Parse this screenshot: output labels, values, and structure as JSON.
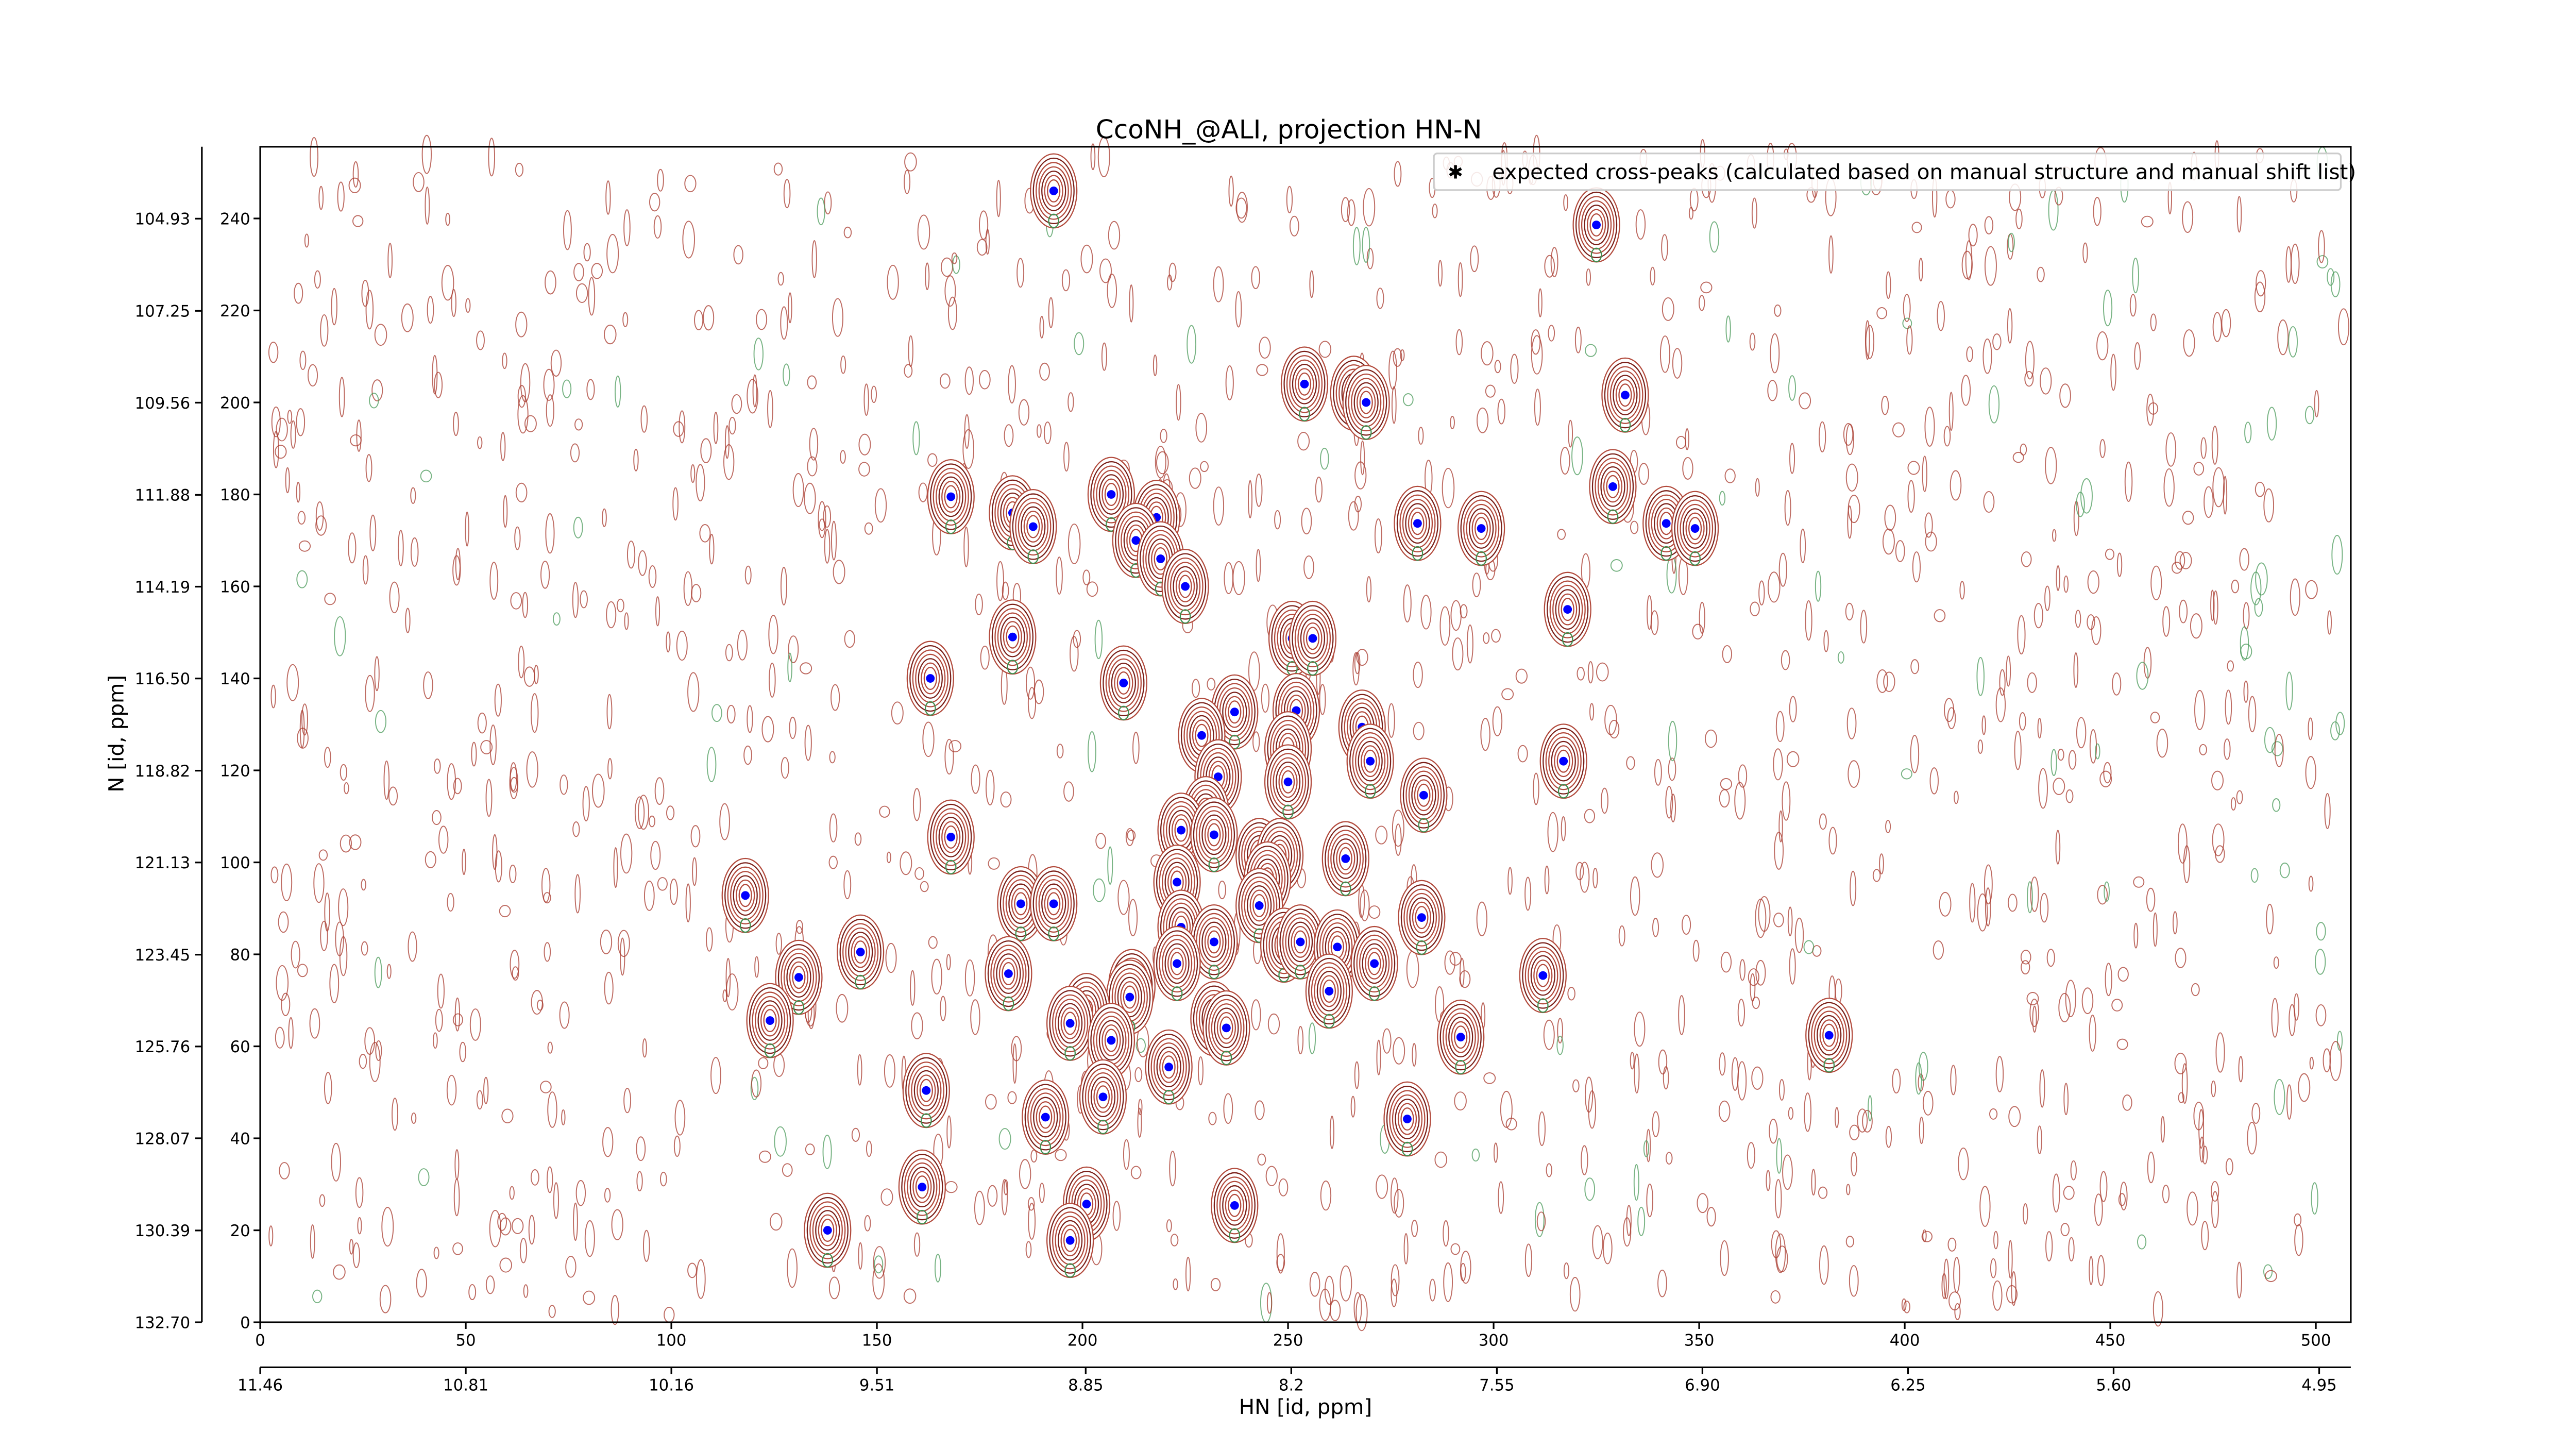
{
  "chart_data": {
    "type": "scatter",
    "title": "CcoNH_@ALI, projection HN-N",
    "x_label": "HN [id, ppm]",
    "y_label": "N [id, ppm]",
    "xlim": [
      0,
      508.5
    ],
    "ylim": [
      0,
      255.6
    ],
    "xticks": [
      0,
      50,
      100,
      150,
      200,
      250,
      300,
      350,
      400,
      450,
      500
    ],
    "yticks": [
      0,
      20,
      40,
      60,
      80,
      100,
      120,
      140,
      160,
      180,
      200,
      220,
      240
    ],
    "x2lim": [
      11.46,
      4.85
    ],
    "x2ticks": [
      11.46,
      10.81,
      10.16,
      9.51,
      8.85,
      8.2,
      {
        "value": 7.55,
        "label": "7.55"
      },
      {
        "value": 6.9,
        "label": "6.90"
      },
      6.25,
      {
        "value": 5.6,
        "label": "5.60"
      },
      4.95
    ],
    "y2lim": [
      132.7,
      103.12
    ],
    "y2ticks": [
      {
        "value": 132.7,
        "label": "132.70"
      },
      130.39,
      128.07,
      125.76,
      123.45,
      121.13,
      118.82,
      {
        "value": 116.5,
        "label": "116.50"
      },
      114.19,
      111.88,
      109.56,
      107.25,
      104.93
    ],
    "legend_position": "upper right",
    "series": [
      {
        "name": "expected cross-peaks (calculated based on manual structure and manual shift list)",
        "color": "#0000ff",
        "x": [
          193,
          325,
          254,
          266,
          269,
          332,
          329,
          168,
          183,
          188,
          207,
          218,
          213,
          219,
          225,
          281.5,
          297,
          342,
          349,
          318,
          183,
          163,
          210,
          251,
          256,
          252,
          237,
          229,
          268,
          250,
          270,
          317,
          233,
          250,
          283,
          230,
          224,
          232,
          168,
          243,
          248,
          264,
          223,
          245,
          118,
          185,
          193,
          243,
          282.5,
          224,
          232,
          249,
          253,
          262,
          146,
          223,
          271,
          131,
          182,
          312,
          212,
          211.5,
          260,
          201,
          197,
          124,
          232,
          235,
          207,
          292,
          381.6,
          221,
          162,
          205,
          191,
          279,
          161,
          201,
          237,
          138,
          197
        ],
        "values": [
          246,
          238.6,
          204,
          202,
          200,
          201.6,
          181.7,
          179.5,
          176,
          173,
          180,
          175,
          170,
          166,
          160,
          173.7,
          172.6,
          173.7,
          172.6,
          155,
          149,
          140,
          139,
          148.7,
          148.7,
          133,
          132.7,
          127.6,
          129.4,
          124.7,
          122,
          122,
          118.6,
          117.5,
          114.6,
          110.6,
          107,
          106,
          105.5,
          101.5,
          101.5,
          100.8,
          95.7,
          96.4,
          92.8,
          91,
          91,
          90.6,
          88,
          85.9,
          82.7,
          82,
          82.7,
          81.6,
          80.5,
          78,
          78,
          75,
          75.8,
          75.4,
          73,
          70.7,
          72,
          67.8,
          65,
          65.6,
          66,
          64,
          61.3,
          62,
          62.4,
          55.5,
          50.4,
          49,
          44.6,
          44.2,
          29.4,
          25.7,
          25.4,
          20,
          17.8
        ]
      }
    ]
  }
}
